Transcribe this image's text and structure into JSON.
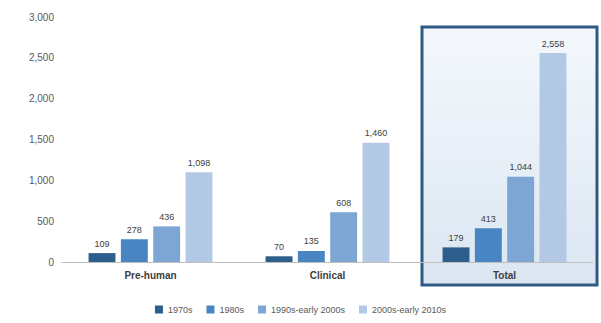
{
  "chart_data": {
    "type": "bar",
    "categories": [
      "Pre-human",
      "Clinical",
      "Total"
    ],
    "series": [
      {
        "name": "1970s",
        "color": "#2e5e8c",
        "values": [
          109,
          70,
          179
        ]
      },
      {
        "name": "1980s",
        "color": "#4a85c3",
        "values": [
          278,
          135,
          413
        ]
      },
      {
        "name": "1990s-early 2000s",
        "color": "#7ea6d5",
        "values": [
          436,
          608,
          1044
        ],
        "value_labels": [
          "436",
          "608",
          "1,044"
        ]
      },
      {
        "name": "2000s-early 2010s",
        "color": "#b3c8e5",
        "values": [
          1098,
          1460,
          2558
        ],
        "value_labels": [
          "1,098",
          "1,460",
          "2,558"
        ]
      }
    ],
    "ylim": [
      0,
      3000
    ],
    "yticks": [
      0,
      500,
      {
        "value": 1000,
        "label": "1,000"
      },
      {
        "value": 1500,
        "label": "1,500"
      },
      {
        "value": 2000,
        "label": "2,000"
      },
      {
        "value": 2500,
        "label": "2,500"
      },
      {
        "value": 3000,
        "label": "3,000"
      }
    ],
    "grid": false,
    "legend": "bottom",
    "data_labels": true
  }
}
